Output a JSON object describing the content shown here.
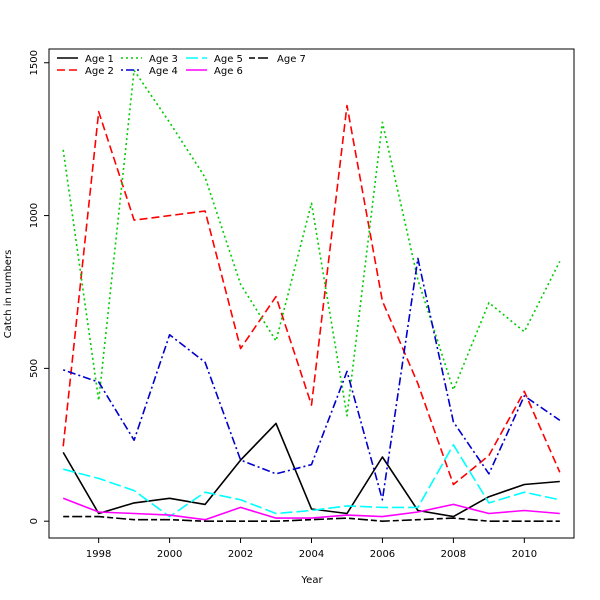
{
  "chart_data": {
    "type": "line",
    "title": "",
    "xlabel": "Year",
    "ylabel": "Catch in numbers",
    "xlim": [
      1996.6,
      2011.4
    ],
    "ylim": [
      -55,
      1545
    ],
    "xticks": [
      "1998",
      "2000",
      "2002",
      "2004",
      "2006",
      "2008",
      "2010"
    ],
    "yticks": [
      "0",
      "500",
      "1000",
      "1500"
    ],
    "grid": false,
    "legend_position": "top-left",
    "x": [
      1997,
      1998,
      1999,
      2000,
      2001,
      2002,
      2003,
      2004,
      2005,
      2006,
      2007,
      2008,
      2009,
      2010,
      2011
    ],
    "series": [
      {
        "name": "Age 1",
        "color": "#000000",
        "dash": "solid",
        "values": [
          225,
          25,
          60,
          75,
          55,
          200,
          320,
          40,
          25,
          210,
          35,
          15,
          80,
          120,
          130
        ]
      },
      {
        "name": "Age 2",
        "color": "#ff0000",
        "dash": "dashed",
        "values": [
          245,
          1340,
          985,
          1000,
          1015,
          565,
          735,
          380,
          1360,
          720,
          450,
          120,
          215,
          425,
          160
        ]
      },
      {
        "name": "Age 3",
        "color": "#00cc00",
        "dash": "dotted",
        "values": [
          1215,
          395,
          1475,
          1305,
          1125,
          775,
          590,
          1040,
          345,
          1305,
          790,
          430,
          715,
          620,
          850
        ]
      },
      {
        "name": "Age 4",
        "color": "#0000cc",
        "dash": "dotdash",
        "values": [
          495,
          455,
          265,
          610,
          520,
          200,
          155,
          185,
          490,
          70,
          860,
          325,
          155,
          410,
          330
        ]
      },
      {
        "name": "Age 5",
        "color": "#00ffff",
        "dash": "longdash",
        "values": [
          170,
          140,
          100,
          15,
          95,
          70,
          25,
          35,
          50,
          45,
          45,
          250,
          60,
          95,
          70
        ]
      },
      {
        "name": "Age 6",
        "color": "#ff00ff",
        "dash": "solid",
        "values": [
          75,
          30,
          25,
          20,
          5,
          45,
          10,
          10,
          20,
          15,
          30,
          55,
          25,
          35,
          25
        ]
      },
      {
        "name": "Age 7",
        "color": "#000000",
        "dash": "twodash",
        "values": [
          15,
          15,
          5,
          5,
          0,
          0,
          0,
          5,
          10,
          0,
          5,
          10,
          0,
          0,
          0
        ]
      }
    ]
  }
}
